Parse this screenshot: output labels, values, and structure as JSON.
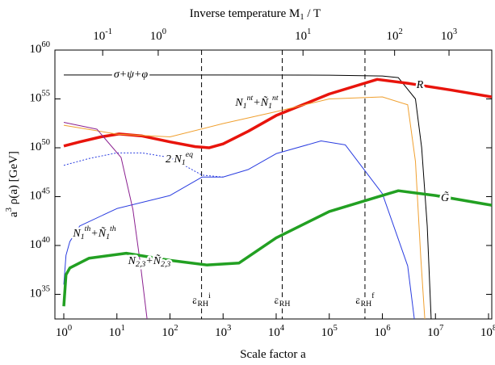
{
  "chart_data": {
    "type": "line",
    "title": "Inverse temperature M_{1} / T",
    "xlabel": "Scale factor a",
    "ylabel": "a^{3} ρ(a) [GeV]",
    "xscale": "log",
    "yscale": "log",
    "xlim": [
      0.68,
      115000000.0
    ],
    "ylim": [
      3e+32,
      1e+60
    ],
    "xticks": [
      {
        "value": 1,
        "label": "10^{0}"
      },
      {
        "value": 10,
        "label": "10^{1}"
      },
      {
        "value": 100,
        "label": "10^{2}"
      },
      {
        "value": 1000,
        "label": "10^{3}"
      },
      {
        "value": 10000,
        "label": "10^{4}"
      },
      {
        "value": 100000,
        "label": "10^{5}"
      },
      {
        "value": 1000000,
        "label": "10^{6}"
      },
      {
        "value": 10000000,
        "label": "10^{7}"
      },
      {
        "value": 100000000,
        "label": "10^{8}"
      }
    ],
    "yticks": [
      {
        "value": 1e+35,
        "label": "10^{35}"
      },
      {
        "value": 1e+40,
        "label": "10^{40}"
      },
      {
        "value": 1e+45,
        "label": "10^{45}"
      },
      {
        "value": 1e+50,
        "label": "10^{50}"
      },
      {
        "value": 1e+55,
        "label": "10^{55}"
      },
      {
        "value": 1e+60,
        "label": "10^{60}"
      }
    ],
    "x2ticks": [
      {
        "value": 5.4,
        "label": "10^{-1}"
      },
      {
        "value": 60,
        "label": "10^{0}"
      },
      {
        "value": 32000,
        "label": "10^{1}"
      },
      {
        "value": 1700000,
        "label": "10^{2}"
      },
      {
        "value": 18000000,
        "label": "10^{3}"
      }
    ],
    "vlines": [
      {
        "x": 393,
        "label": "a_{RH}^{i}"
      },
      {
        "x": 13000,
        "label": "a_{RH}"
      },
      {
        "x": 470000,
        "label": "a_{RH}^{f}"
      }
    ],
    "series": [
      {
        "name": "σ+ψ+φ",
        "color": "#000000",
        "linewidth": 1,
        "linestyle": "solid",
        "x": [
          1,
          1000,
          100000,
          1000000,
          2000000,
          4200000,
          5500000,
          7000000,
          8300000
        ],
        "values": [
          2.8e+57,
          2.8e+57,
          2.7e+57,
          2.2e+57,
          1.5e+57,
          1e+55,
          1e+50,
          1e+42,
          3e+32
        ]
      },
      {
        "name": "R",
        "color": "#e8140c",
        "linewidth": 3.5,
        "linestyle": "solid",
        "x": [
          1,
          2,
          5,
          11,
          30,
          100,
          300,
          550,
          1000,
          3000,
          10000,
          100000,
          800000,
          3000000,
          20000000,
          115000000
        ],
        "values": [
          1.5e+50,
          4e+50,
          1.3e+51,
          2.6e+51,
          1.6e+51,
          4e+50,
          1.3e+50,
          1e+50,
          2.5e+50,
          5e+51,
          2e+53,
          3.2e+55,
          1e+57,
          4e+56,
          8e+55,
          1.6e+55
        ]
      },
      {
        "name": "N_{1}^{nt}+Ñ_{1}^{nt}",
        "color": "#f0a030",
        "linewidth": 1,
        "linestyle": "solid",
        "x": [
          1,
          10,
          100,
          1000,
          10000,
          100000,
          1000000,
          3000000,
          4200000,
          5300000,
          6300000
        ],
        "values": [
          2e+52,
          2.5e+51,
          1.3e+51,
          3e+52,
          5e+53,
          1e+55,
          1.6e+55,
          2.5e+54,
          4e+48,
          5e+38,
          3e+32
        ]
      },
      {
        "name": "2 N_{1}^{eq}",
        "color": "#2a3de0",
        "linewidth": 1,
        "linestyle": "dotted",
        "x": [
          1,
          3,
          10,
          30,
          100,
          400,
          1000
        ],
        "values": [
          1.6e+48,
          8e+48,
          3e+49,
          3e+49,
          1e+49,
          1.6e+47,
          1e+47
        ]
      },
      {
        "name": "N_{1}^{th}+Ñ_{1}^{th}",
        "color": "#2a3de0",
        "linewidth": 1,
        "linestyle": "solid",
        "x": [
          1,
          1.1,
          1.3,
          2,
          10,
          100,
          400,
          1000,
          3000,
          10000,
          70000,
          200000,
          1000000,
          3000000,
          4000000
        ],
        "values": [
          1e+36,
          1e+39,
          2.5e+40,
          1e+42,
          6e+43,
          1.3e+45,
          1e+47,
          1e+47,
          6e+47,
          2.5e+49,
          5e+50,
          2e+50,
          2e+45,
          8e+37,
          3e+32
        ]
      },
      {
        "name": "N_{2,3}+Ñ_{2,3}",
        "color": "#8b2090",
        "linewidth": 1,
        "linestyle": "solid",
        "x": [
          1,
          4.2,
          12,
          20,
          28,
          37
        ],
        "values": [
          4e+52,
          8e+51,
          1e+49,
          5e+43,
          8e+37,
          3e+32
        ]
      },
      {
        "name": "G̃",
        "color": "#22a022",
        "linewidth": 3.5,
        "linestyle": "solid",
        "x": [
          1,
          1.1,
          1.3,
          3,
          15,
          100,
          500,
          2000,
          10000,
          100000,
          1000000,
          2000000,
          10000000,
          115000000
        ],
        "values": [
          6e+33,
          1e+37,
          5e+37,
          5e+38,
          1.6e+39,
          3e+38,
          1e+38,
          1.6e+38,
          6e+40,
          3e+43,
          1.3e+45,
          4e+45,
          1.3e+45,
          1.3e+44
        ]
      }
    ]
  }
}
